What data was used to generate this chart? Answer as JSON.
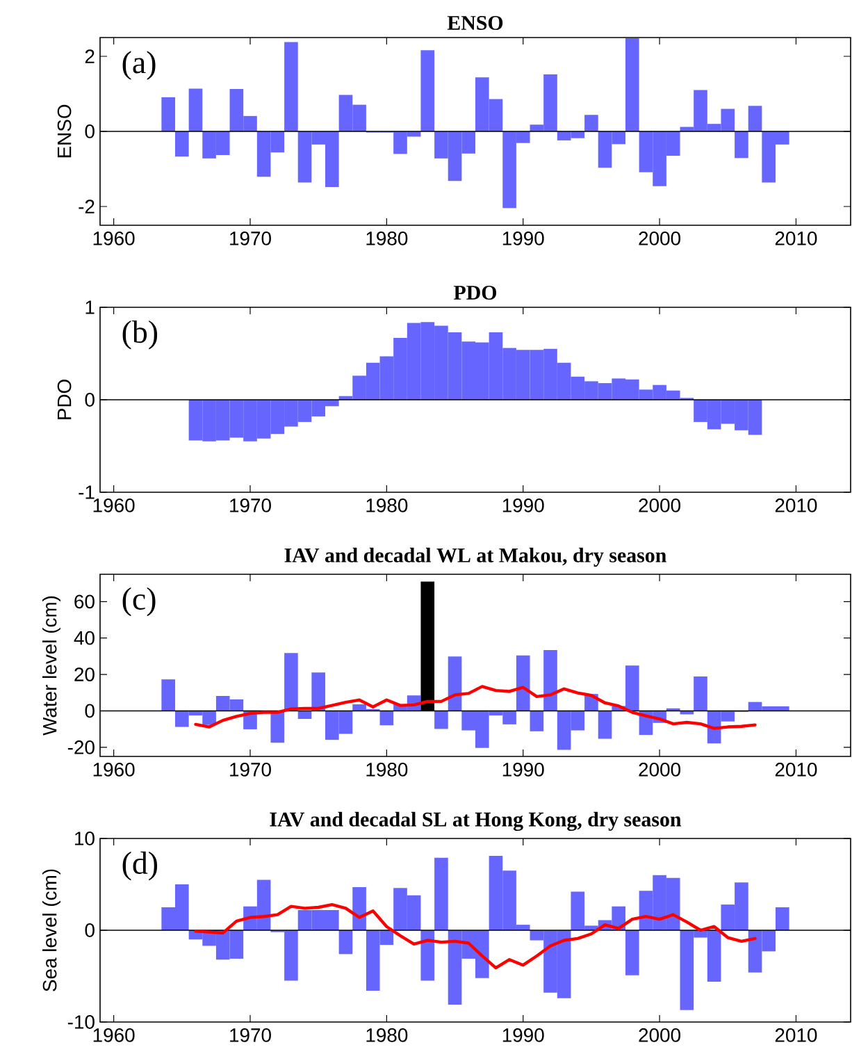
{
  "chart_data": [
    {
      "type": "bar",
      "title": "ENSO",
      "ylabel": "ENSO",
      "annotations": [
        "(a)"
      ],
      "xlim": [
        1959,
        2014
      ],
      "xticks": [
        1960,
        1970,
        1980,
        1990,
        2000,
        2010
      ],
      "ylim": [
        -2.5,
        2.5
      ],
      "yticks": [
        -2,
        0,
        2
      ],
      "ref_lines": [
        {
          "axis": "y",
          "value": 0,
          "color": "#000000"
        }
      ],
      "x": [
        1964,
        1965,
        1966,
        1967,
        1968,
        1969,
        1970,
        1971,
        1972,
        1973,
        1974,
        1975,
        1976,
        1977,
        1978,
        1979,
        1980,
        1981,
        1982,
        1983,
        1984,
        1985,
        1986,
        1987,
        1988,
        1989,
        1990,
        1991,
        1992,
        1993,
        1994,
        1995,
        1996,
        1997,
        1998,
        1999,
        2000,
        2001,
        2002,
        2003,
        2004,
        2005,
        2006,
        2007,
        2008,
        2009
      ],
      "series": [
        {
          "color": "#6666ff",
          "values": [
            0.91,
            -0.67,
            1.14,
            -0.72,
            -0.63,
            1.13,
            0.41,
            -1.21,
            -0.56,
            2.38,
            -1.36,
            -0.35,
            -1.48,
            0.97,
            0.71,
            -0.03,
            -0.03,
            -0.6,
            -0.14,
            2.16,
            -0.72,
            -1.32,
            -0.59,
            1.44,
            0.86,
            -2.04,
            -0.31,
            0.18,
            1.52,
            -0.24,
            -0.18,
            0.44,
            -0.97,
            -0.34,
            2.48,
            -1.09,
            -1.46,
            -0.65,
            0.12,
            1.1,
            0.2,
            0.6,
            -0.71,
            0.68,
            -1.36,
            -0.35
          ]
        }
      ]
    },
    {
      "type": "bar",
      "title": "PDO",
      "ylabel": "PDO",
      "annotations": [
        "(b)"
      ],
      "xlim": [
        1959,
        2014
      ],
      "xticks": [
        1960,
        1970,
        1980,
        1990,
        2000,
        2010
      ],
      "ylim": [
        -1,
        1
      ],
      "yticks": [
        -1,
        0,
        1
      ],
      "ref_lines": [
        {
          "axis": "y",
          "value": 0,
          "color": "#000000"
        }
      ],
      "x": [
        1966,
        1967,
        1968,
        1969,
        1970,
        1971,
        1972,
        1973,
        1974,
        1975,
        1976,
        1977,
        1978,
        1979,
        1980,
        1981,
        1982,
        1983,
        1984,
        1985,
        1986,
        1987,
        1988,
        1989,
        1990,
        1991,
        1992,
        1993,
        1994,
        1995,
        1996,
        1997,
        1998,
        1999,
        2000,
        2001,
        2002,
        2003,
        2004,
        2005,
        2006,
        2007
      ],
      "series": [
        {
          "color": "#6666ff",
          "values": [
            -0.44,
            -0.45,
            -0.44,
            -0.41,
            -0.45,
            -0.42,
            -0.37,
            -0.29,
            -0.24,
            -0.18,
            -0.07,
            0.04,
            0.26,
            0.4,
            0.47,
            0.67,
            0.83,
            0.84,
            0.8,
            0.73,
            0.63,
            0.62,
            0.73,
            0.56,
            0.54,
            0.54,
            0.55,
            0.4,
            0.25,
            0.2,
            0.18,
            0.23,
            0.22,
            0.11,
            0.16,
            0.1,
            0.02,
            -0.24,
            -0.32,
            -0.26,
            -0.33,
            -0.38
          ]
        }
      ]
    },
    {
      "type": "bar",
      "title": "IAV and decadal WL at Makou, dry season",
      "ylabel": "Water level (cm)",
      "annotations": [
        "(c)"
      ],
      "xlim": [
        1959,
        2014
      ],
      "xticks": [
        1960,
        1970,
        1980,
        1990,
        2000,
        2010
      ],
      "ylim": [
        -25,
        75
      ],
      "yticks": [
        -20,
        0,
        20,
        40,
        60
      ],
      "ref_lines": [
        {
          "axis": "y",
          "value": 0,
          "color": "#000000"
        }
      ],
      "x": [
        1964,
        1965,
        1966,
        1967,
        1968,
        1969,
        1970,
        1971,
        1972,
        1973,
        1974,
        1975,
        1976,
        1977,
        1978,
        1979,
        1980,
        1981,
        1982,
        1983,
        1984,
        1985,
        1986,
        1987,
        1988,
        1989,
        1990,
        1991,
        1992,
        1993,
        1994,
        1995,
        1996,
        1997,
        1998,
        1999,
        2000,
        2001,
        2002,
        2003,
        2004,
        2005,
        2006,
        2007,
        2008,
        2009
      ],
      "series": [
        {
          "colors": [
            "#6666ff",
            "#6666ff",
            "#6666ff",
            "#6666ff",
            "#6666ff",
            "#6666ff",
            "#6666ff",
            "#6666ff",
            "#6666ff",
            "#6666ff",
            "#6666ff",
            "#6666ff",
            "#6666ff",
            "#6666ff",
            "#6666ff",
            "#6666ff",
            "#6666ff",
            "#6666ff",
            "#6666ff",
            "#000000",
            "#6666ff",
            "#6666ff",
            "#6666ff",
            "#6666ff",
            "#6666ff",
            "#6666ff",
            "#6666ff",
            "#6666ff",
            "#6666ff",
            "#6666ff",
            "#6666ff",
            "#6666ff",
            "#6666ff",
            "#6666ff",
            "#6666ff",
            "#6666ff",
            "#6666ff",
            "#6666ff",
            "#6666ff",
            "#6666ff",
            "#6666ff",
            "#6666ff",
            "#6666ff",
            "#6666ff",
            "#6666ff",
            "#6666ff"
          ],
          "values": [
            17.3,
            -8.8,
            -2.5,
            -7.7,
            8.2,
            6.3,
            -10.1,
            null,
            -17.5,
            31.8,
            -4.4,
            21.1,
            -15.9,
            -12.6,
            3.6,
            1.0,
            -7.9,
            3.6,
            8.5,
            71,
            -9.9,
            29.9,
            -10.7,
            -20.3,
            -2.5,
            -7.4,
            30.4,
            -11.2,
            33.4,
            -21.4,
            -10.7,
            9.3,
            -15.3,
            2.7,
            24.9,
            -13.2,
            -6.6,
            1.4,
            -1.9,
            18.9,
            -17.8,
            -5.8,
            -0.5,
            4.9,
            2.5,
            2.5
          ]
        },
        {
          "type": "line",
          "color": "#ff0000",
          "x": [
            1966,
            1967,
            1968,
            1969,
            1970,
            1971,
            1972,
            1973,
            1974,
            1975,
            1976,
            1977,
            1978,
            1979,
            1980,
            1981,
            1982,
            1983,
            1984,
            1985,
            1986,
            1987,
            1988,
            1989,
            1990,
            1991,
            1992,
            1993,
            1994,
            1995,
            1996,
            1997,
            1998,
            1999,
            2000,
            2001,
            2002,
            2003,
            2004,
            2005,
            2006,
            2007
          ],
          "values": [
            -7.4,
            -8.8,
            -5.2,
            -3.0,
            -1.4,
            -0.8,
            -0.8,
            1.1,
            1.4,
            1.4,
            3.0,
            4.7,
            6.0,
            2.2,
            6.0,
            3.0,
            3.3,
            5.2,
            5.2,
            8.8,
            9.6,
            13.4,
            11.2,
            10.7,
            12.9,
            7.9,
            8.8,
            12.1,
            9.9,
            8.5,
            4.4,
            2.7,
            -0.8,
            -2.7,
            -4.4,
            -7.1,
            -6.3,
            -7.1,
            -9.6,
            -8.8,
            -8.5,
            -7.7
          ]
        }
      ]
    },
    {
      "type": "bar",
      "title": "IAV and decadal SL at Hong Kong, dry season",
      "ylabel": "Sea level (cm)",
      "annotations": [
        "(d)"
      ],
      "xlim": [
        1959,
        2014
      ],
      "xticks": [
        1960,
        1970,
        1980,
        1990,
        2000,
        2010
      ],
      "ylim": [
        -10,
        10
      ],
      "yticks": [
        -10,
        0,
        10
      ],
      "ref_lines": [
        {
          "axis": "y",
          "value": 0,
          "color": "#000000"
        }
      ],
      "x": [
        1964,
        1965,
        1966,
        1967,
        1968,
        1969,
        1970,
        1971,
        1972,
        1973,
        1974,
        1975,
        1976,
        1977,
        1978,
        1979,
        1980,
        1981,
        1982,
        1983,
        1984,
        1985,
        1986,
        1987,
        1988,
        1989,
        1990,
        1991,
        1992,
        1993,
        1994,
        1995,
        1996,
        1997,
        1998,
        1999,
        2000,
        2001,
        2002,
        2003,
        2004,
        2005,
        2006,
        2007,
        2008,
        2009
      ],
      "series": [
        {
          "color": "#6666ff",
          "values": [
            2.5,
            5.0,
            -1.0,
            -1.7,
            -3.2,
            -3.1,
            2.6,
            5.5,
            -0.2,
            -5.5,
            2.2,
            2.2,
            2.2,
            -2.6,
            4.7,
            -6.6,
            -1.6,
            4.6,
            3.8,
            -5.5,
            7.9,
            -8.1,
            -3.1,
            -5.2,
            8.1,
            6.5,
            0.6,
            -1.1,
            -6.8,
            -7.4,
            4.2,
            0.5,
            1.1,
            2.6,
            -4.9,
            4.3,
            6.0,
            5.7,
            -8.7,
            -0.8,
            -5.6,
            2.8,
            5.2,
            -4.6,
            -2.3,
            2.5
          ]
        },
        {
          "type": "line",
          "color": "#ff0000",
          "x": [
            1966,
            1967,
            1968,
            1969,
            1970,
            1971,
            1972,
            1973,
            1974,
            1975,
            1976,
            1977,
            1978,
            1979,
            1980,
            1981,
            1982,
            1983,
            1984,
            1985,
            1986,
            1987,
            1988,
            1989,
            1990,
            1991,
            1992,
            1993,
            1994,
            1995,
            1996,
            1997,
            1998,
            1999,
            2000,
            2001,
            2002,
            2003,
            2004,
            2005,
            2006,
            2007
          ],
          "values": [
            -0.1,
            -0.2,
            -0.3,
            1.0,
            1.4,
            1.5,
            1.7,
            2.6,
            2.4,
            2.5,
            2.8,
            2.4,
            1.4,
            2.1,
            0.4,
            -0.6,
            -1.5,
            -1.1,
            -1.3,
            -1.2,
            -1.4,
            -2.8,
            -4.1,
            -3.2,
            -3.8,
            -2.8,
            -1.7,
            -1.1,
            -0.9,
            -0.4,
            0.6,
            0.2,
            1.2,
            1.5,
            1.2,
            1.7,
            0.9,
            0.0,
            0.4,
            -0.8,
            -1.2,
            -0.9
          ]
        }
      ]
    }
  ]
}
